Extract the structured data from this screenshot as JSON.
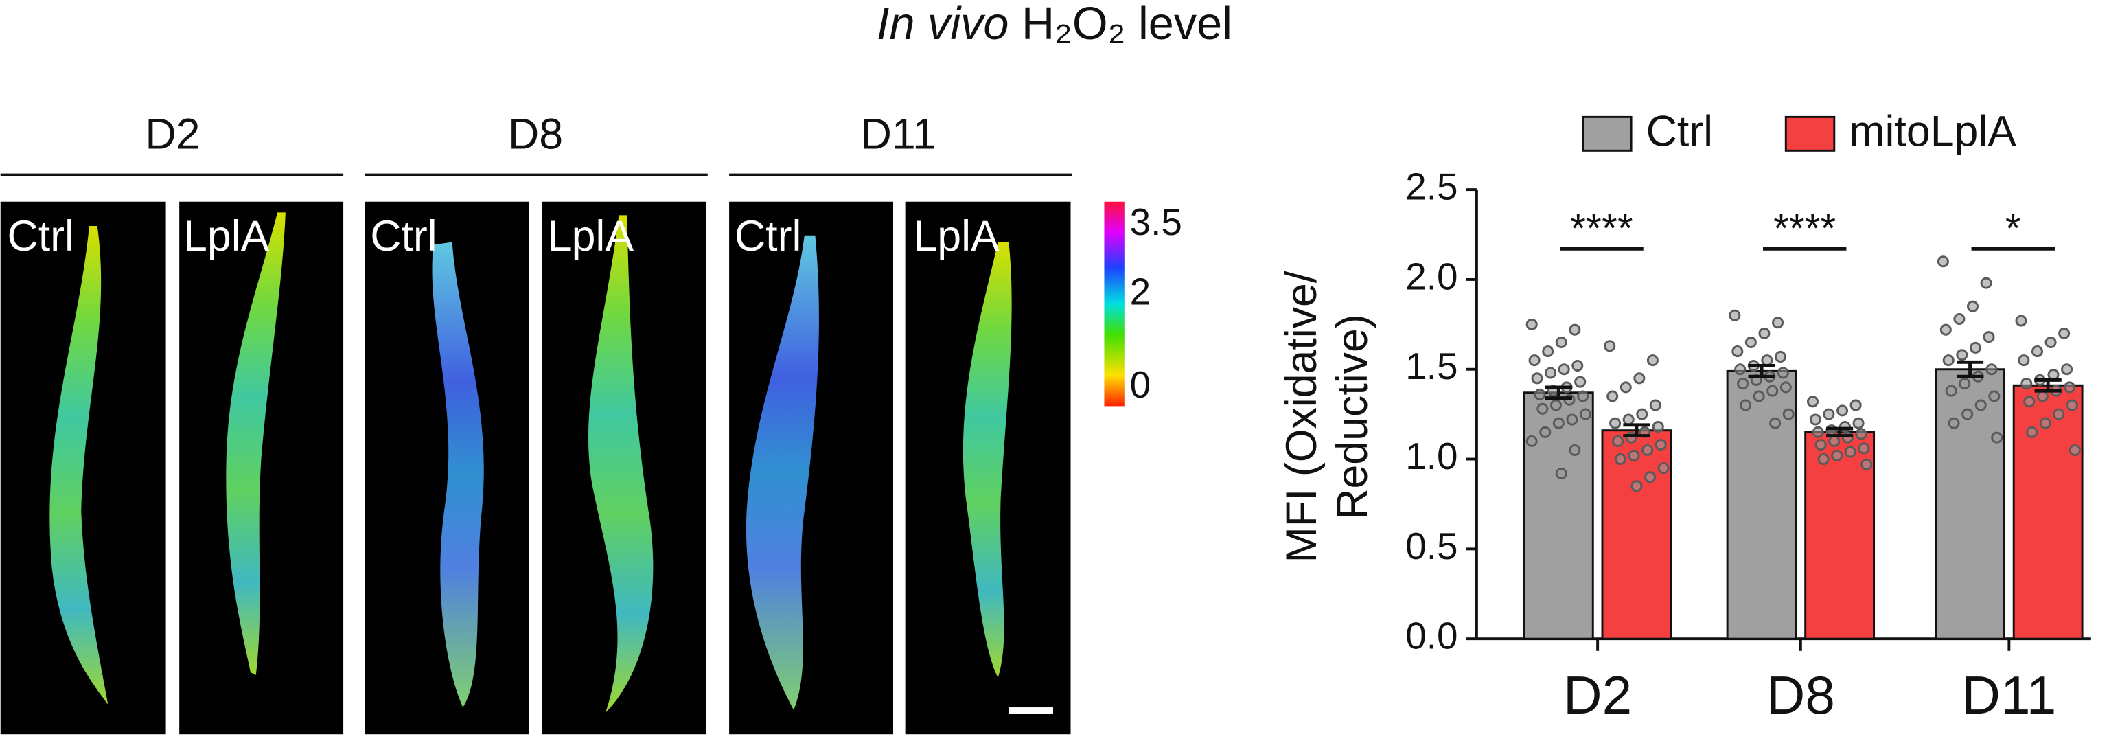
{
  "figure": {
    "title": [
      "In vivo",
      "H₂O₂ level"
    ],
    "panels": [
      {
        "label": "D2",
        "images": [
          "Ctrl",
          "LplA"
        ]
      },
      {
        "label": "D8",
        "images": [
          "Ctrl",
          "LplA"
        ]
      },
      {
        "label": "D11",
        "images": [
          "Ctrl",
          "LplA"
        ]
      }
    ],
    "colorbar": {
      "lim": [
        -0.4,
        4
      ],
      "ticks": [
        3.5,
        2,
        0
      ]
    }
  },
  "chart_data": {
    "type": "bar",
    "categories": [
      "D2",
      "D8",
      "D11"
    ],
    "ylabel": [
      "MFI (Oxidative/",
      "Reductive)"
    ],
    "ylim": [
      0,
      2.5
    ],
    "yticks": [
      {
        "value": 0,
        "label": "0.0"
      },
      0.5,
      {
        "value": 1,
        "label": "1.0"
      },
      1.5,
      {
        "value": 2,
        "label": "2.0"
      },
      2.5
    ],
    "legend": "top",
    "significance": [
      "****",
      "****",
      "*"
    ],
    "series": [
      {
        "name": "Ctrl",
        "color": "#a0a0a0",
        "values": [
          1.37,
          1.49,
          1.5
        ],
        "errors": [
          0.03,
          0.03,
          0.04
        ],
        "points": [
          [
            1.75,
            1.72,
            1.65,
            1.6,
            1.55,
            1.52,
            1.5,
            1.48,
            1.45,
            1.43,
            1.4,
            1.38,
            1.36,
            1.35,
            1.33,
            1.3,
            1.28,
            1.25,
            1.22,
            1.2,
            1.15,
            1.1,
            1.05,
            0.92
          ],
          [
            1.8,
            1.76,
            1.7,
            1.65,
            1.6,
            1.57,
            1.55,
            1.52,
            1.5,
            1.48,
            1.46,
            1.44,
            1.42,
            1.4,
            1.38,
            1.35,
            1.3,
            1.25,
            1.2
          ],
          [
            2.1,
            1.98,
            1.85,
            1.78,
            1.72,
            1.68,
            1.62,
            1.58,
            1.55,
            1.5,
            1.46,
            1.42,
            1.38,
            1.35,
            1.3,
            1.25,
            1.2,
            1.12
          ]
        ]
      },
      {
        "name": "mitoLplA",
        "color": "#f44040",
        "values": [
          1.16,
          1.15,
          1.41
        ],
        "errors": [
          0.03,
          0.02,
          0.03
        ],
        "points": [
          [
            1.63,
            1.55,
            1.45,
            1.4,
            1.35,
            1.3,
            1.25,
            1.22,
            1.2,
            1.18,
            1.15,
            1.12,
            1.1,
            1.08,
            1.05,
            1.02,
            1.0,
            0.95,
            0.9,
            0.85
          ],
          [
            1.32,
            1.3,
            1.27,
            1.25,
            1.22,
            1.2,
            1.18,
            1.16,
            1.15,
            1.14,
            1.12,
            1.1,
            1.08,
            1.06,
            1.04,
            1.02,
            1.0,
            0.97
          ],
          [
            1.77,
            1.7,
            1.65,
            1.6,
            1.55,
            1.5,
            1.47,
            1.44,
            1.42,
            1.4,
            1.38,
            1.35,
            1.32,
            1.3,
            1.25,
            1.2,
            1.15,
            1.05
          ]
        ]
      }
    ]
  }
}
